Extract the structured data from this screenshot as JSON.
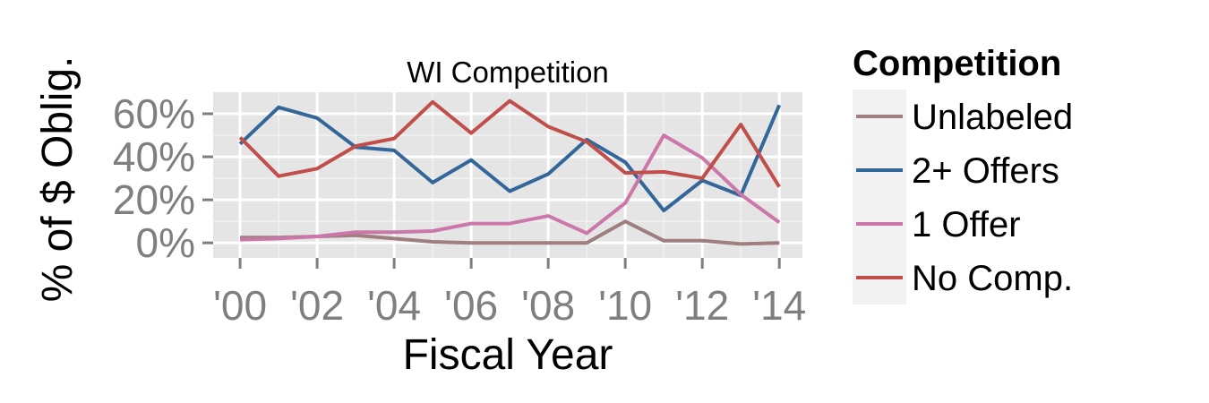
{
  "chart_data": {
    "type": "line",
    "title": "WI Competition",
    "xlabel": "Fiscal Year",
    "ylabel": "% of $ Oblig.",
    "x": [
      2000,
      2001,
      2002,
      2003,
      2004,
      2005,
      2006,
      2007,
      2008,
      2009,
      2010,
      2011,
      2012,
      2013,
      2014
    ],
    "x_ticks": [
      2000,
      2002,
      2004,
      2006,
      2008,
      2010,
      2012,
      2014
    ],
    "x_tick_labels": [
      "'00",
      "'02",
      "'04",
      "'06",
      "'08",
      "'10",
      "'12",
      "'14"
    ],
    "xlim": [
      1999.3,
      2014.6
    ],
    "y_ticks": [
      0,
      20,
      40,
      60
    ],
    "y_tick_labels": [
      "0%",
      "20%",
      "40%",
      "60%"
    ],
    "ylim": [
      -7,
      70
    ],
    "grid": true,
    "legend": {
      "title": "Competition",
      "position": "right"
    },
    "series": [
      {
        "name": "Unlabeled",
        "color": "#9E7E7F",
        "values": [
          2.5,
          2.5,
          3,
          3.5,
          2,
          0.5,
          0,
          0,
          0,
          0,
          10,
          1,
          1,
          -0.5,
          0
        ]
      },
      {
        "name": "2+ Offers",
        "color": "#336699",
        "values": [
          46,
          63,
          58,
          44.5,
          43,
          28,
          38.5,
          24,
          32,
          48,
          37.5,
          15,
          29,
          22,
          64
        ]
      },
      {
        "name": "1 Offer",
        "color": "#CC77AA",
        "values": [
          1.5,
          2,
          3,
          5,
          5,
          5.5,
          9,
          9,
          12.5,
          4.5,
          18.5,
          50,
          39.5,
          22.5,
          9.5
        ]
      },
      {
        "name": "No Comp.",
        "color": "#C04E4A",
        "values": [
          49,
          31,
          34.5,
          45,
          48.5,
          65.5,
          51,
          66,
          54,
          47,
          32.5,
          33,
          30,
          55,
          26
        ]
      }
    ]
  }
}
